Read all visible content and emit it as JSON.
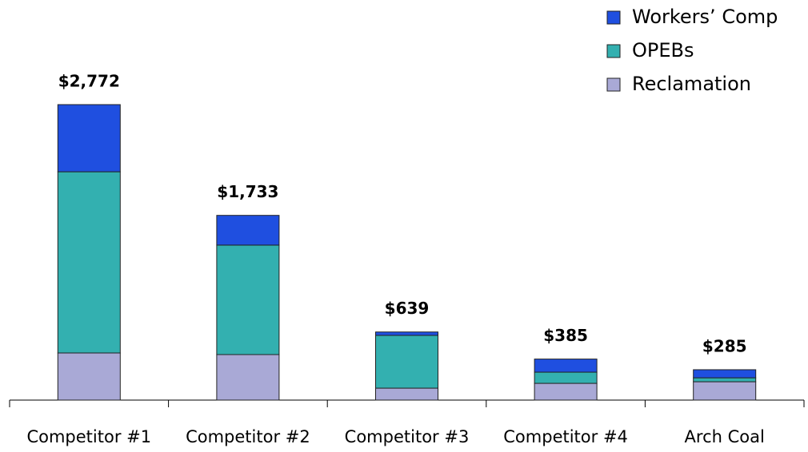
{
  "chart_data": {
    "type": "stacked_bar",
    "categories": [
      "Competitor #1",
      "Competitor #2",
      "Competitor #3",
      "Competitor #4",
      "Arch Coal"
    ],
    "series": [
      {
        "name": "Reclamation",
        "color": "#a9a9d6",
        "values": [
          442,
          427,
          112,
          157,
          172
        ]
      },
      {
        "name": "OPEBs",
        "color": "#33b0b0",
        "values": [
          1700,
          1027,
          495,
          105,
          37
        ]
      },
      {
        "name": "Workers’ Comp",
        "color": "#1f4fe0",
        "values": [
          630,
          279,
          32,
          123,
          76
        ]
      }
    ],
    "totals": [
      2772,
      1733,
      639,
      385,
      285
    ],
    "total_labels": [
      "$2,772",
      "$1,733",
      "$639",
      "$385",
      "$285"
    ],
    "legend": "top-right"
  }
}
